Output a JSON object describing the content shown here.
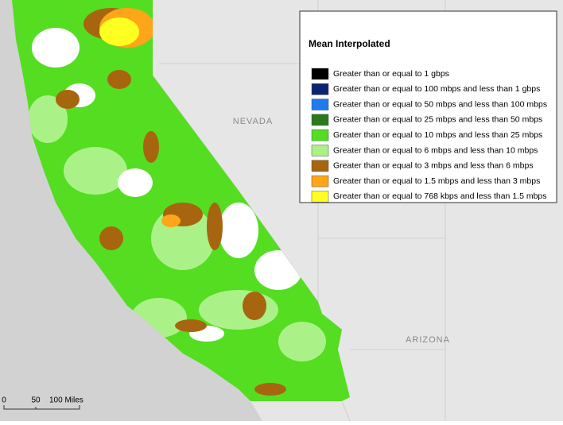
{
  "map": {
    "labels": [
      {
        "text": "NEVADA"
      },
      {
        "text": "ARIZONA"
      }
    ],
    "legend": {
      "title": "Mean Interpolated",
      "items": [
        {
          "label": "Greater than or equal to 1 gbps",
          "color": "#000000"
        },
        {
          "label": "Greater than or equal to 100 mbps and less than 1 gbps",
          "color": "#0a2470"
        },
        {
          "label": "Greater than or equal to 50 mbps and less than 100 mbps",
          "color": "#1e7bf0"
        },
        {
          "label": "Greater than or equal to 25 mbps and less than 50 mbps",
          "color": "#2a7a1c"
        },
        {
          "label": "Greater than or equal to 10 mbps and less than 25 mbps",
          "color": "#55dd22"
        },
        {
          "label": "Greater than or equal to 6 mbps and less than 10 mbps",
          "color": "#aaf288"
        },
        {
          "label": "Greater than or equal to 3 mbps and less than 6 mbps",
          "color": "#a8650f"
        },
        {
          "label": "Greater than or equal to 1.5 mbps and less than 3 mbps",
          "color": "#ffa51a"
        },
        {
          "label": "Greater than or equal to 768 kbps and less than 1.5 mbps",
          "color": "#ffff22"
        }
      ]
    },
    "scale_bar": {
      "ticks": [
        "0",
        "50",
        "100 Miles"
      ]
    }
  }
}
